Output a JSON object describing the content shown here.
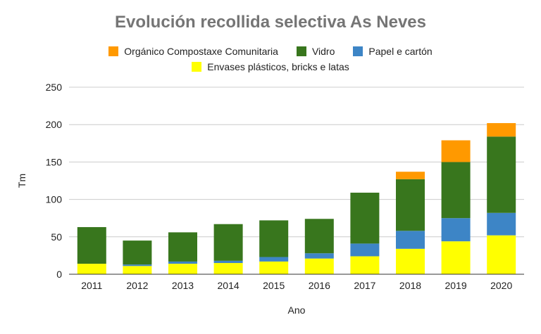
{
  "chart_data": {
    "type": "bar",
    "stacked": true,
    "title": "Evolución recollida selectiva As Neves",
    "xlabel": "Ano",
    "ylabel": "Tm",
    "ylim": [
      0,
      250
    ],
    "yticks": [
      "0",
      "50",
      "100",
      "150",
      "200",
      "250"
    ],
    "grid": true,
    "legend_position": "top",
    "categories": [
      "2011",
      "2012",
      "2013",
      "2014",
      "2015",
      "2016",
      "2017",
      "2018",
      "2019",
      "2020"
    ],
    "series": [
      {
        "name": "Envases plásticos, bricks e latas",
        "color": "#ffff00",
        "values": [
          14,
          11,
          14,
          15,
          17,
          21,
          24,
          34,
          44,
          52
        ]
      },
      {
        "name": "Papel e cartón",
        "color": "#3d85c6",
        "values": [
          0,
          2,
          3,
          3,
          6,
          7,
          17,
          24,
          31,
          30
        ]
      },
      {
        "name": "Vidro",
        "color": "#38761d",
        "values": [
          49,
          32,
          39,
          49,
          49,
          46,
          68,
          69,
          75,
          102
        ]
      },
      {
        "name": "Orgánico Compostaxe Comunitaria",
        "color": "#ff9900",
        "values": [
          0,
          0,
          0,
          0,
          0,
          0,
          0,
          10,
          29,
          18
        ]
      }
    ],
    "legend_rows": [
      [
        "Orgánico Compostaxe Comunitaria",
        "Vidro",
        "Papel e cartón"
      ],
      [
        "Envases plásticos, bricks e latas"
      ]
    ],
    "colors": {
      "gridline": "#cccccc",
      "baseline": "#333333",
      "title": "#757575"
    }
  }
}
